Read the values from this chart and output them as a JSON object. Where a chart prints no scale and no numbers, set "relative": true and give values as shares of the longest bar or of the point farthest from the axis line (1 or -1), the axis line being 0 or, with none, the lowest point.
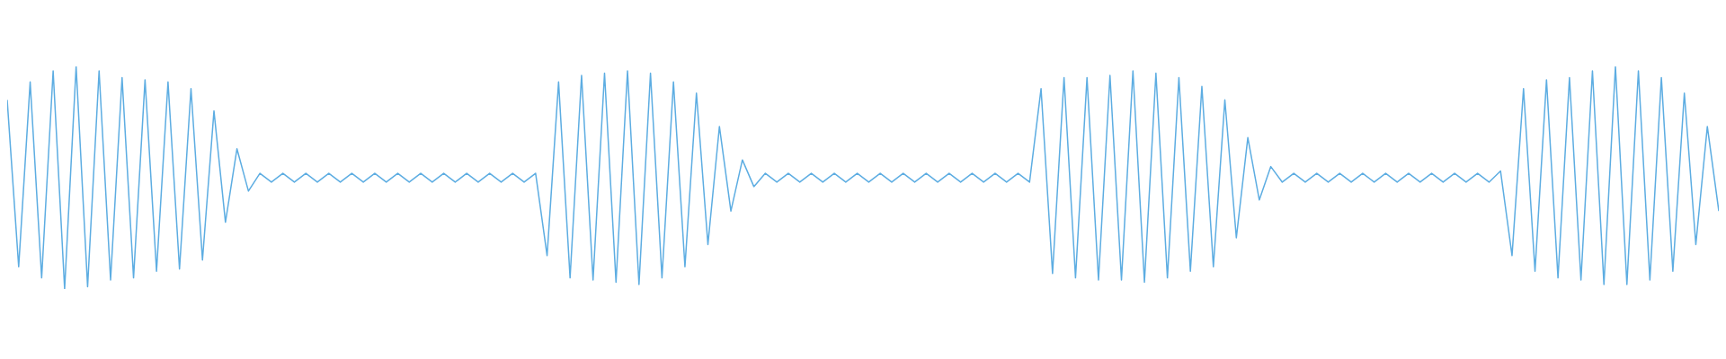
{
  "chart_data": {
    "type": "line",
    "relative": true,
    "categories": [
      null,
      null,
      null,
      null,
      null,
      null,
      null,
      null,
      null,
      null,
      null,
      null,
      null,
      null,
      null,
      null,
      null,
      null,
      null,
      null,
      null,
      null,
      null,
      null,
      null,
      null,
      null,
      null,
      null,
      null,
      null,
      null,
      null,
      null,
      null,
      null,
      null,
      null,
      null,
      null,
      null,
      null,
      null,
      null,
      null,
      null,
      null,
      null,
      null,
      null,
      null,
      null,
      null,
      null,
      null,
      null,
      null,
      null,
      null,
      null,
      null,
      null,
      null,
      null,
      null,
      null,
      null,
      null,
      null,
      null,
      null,
      null,
      null,
      null,
      null,
      null,
      null,
      null,
      null,
      null,
      null,
      null,
      null,
      null,
      null,
      null,
      null,
      null,
      null,
      null,
      null,
      null,
      null,
      null,
      null,
      null,
      null,
      null,
      null,
      null,
      null,
      null,
      null,
      null,
      null,
      null,
      null,
      null,
      null,
      null,
      null,
      null,
      null,
      null,
      null,
      null,
      null,
      null,
      null,
      null,
      null,
      null,
      null,
      null,
      null,
      null,
      null,
      null,
      null,
      null,
      null,
      null,
      null,
      null,
      null,
      null,
      null,
      null,
      null,
      null,
      null,
      null,
      null,
      null,
      null,
      null,
      null,
      null,
      null,
      null
    ],
    "series": [
      {
        "color": "#5dade2",
        "values": [
          0.85,
          0.1,
          0.93,
          0.05,
          0.98,
          0,
          1,
          0.01,
          0.98,
          0.04,
          0.95,
          0.05,
          0.94,
          0.08,
          0.93,
          0.09,
          0.9,
          0.13,
          0.8,
          0.3,
          0.63,
          0.44,
          0.52,
          0.48,
          0.52,
          0.48,
          0.52,
          0.48,
          0.52,
          0.48,
          0.52,
          0.48,
          0.52,
          0.48,
          0.52,
          0.48,
          0.52,
          0.48,
          0.52,
          0.48,
          0.52,
          0.48,
          0.52,
          0.48,
          0.52,
          0.48,
          0.52,
          0.15,
          0.93,
          0.05,
          0.96,
          0.04,
          0.97,
          0.03,
          0.98,
          0.02,
          0.97,
          0.05,
          0.93,
          0.1,
          0.88,
          0.2,
          0.73,
          0.35,
          0.58,
          0.46,
          0.52,
          0.48,
          0.52,
          0.48,
          0.52,
          0.48,
          0.52,
          0.48,
          0.52,
          0.48,
          0.52,
          0.48,
          0.52,
          0.48,
          0.52,
          0.48,
          0.52,
          0.48,
          0.52,
          0.48,
          0.52,
          0.48,
          0.52,
          0.48,
          0.9,
          0.07,
          0.95,
          0.05,
          0.95,
          0.04,
          0.96,
          0.04,
          0.98,
          0.03,
          0.97,
          0.05,
          0.95,
          0.08,
          0.91,
          0.1,
          0.85,
          0.23,
          0.68,
          0.4,
          0.55,
          0.48,
          0.52,
          0.48,
          0.52,
          0.48,
          0.52,
          0.48,
          0.52,
          0.48,
          0.52,
          0.48,
          0.52,
          0.48,
          0.52,
          0.48,
          0.52,
          0.48,
          0.52,
          0.48,
          0.53,
          0.15,
          0.9,
          0.08,
          0.94,
          0.05,
          0.95,
          0.04,
          0.98,
          0.02,
          1,
          0.02,
          0.98,
          0.04,
          0.95,
          0.08,
          0.88,
          0.2,
          0.73,
          0.35
        ]
      }
    ]
  }
}
